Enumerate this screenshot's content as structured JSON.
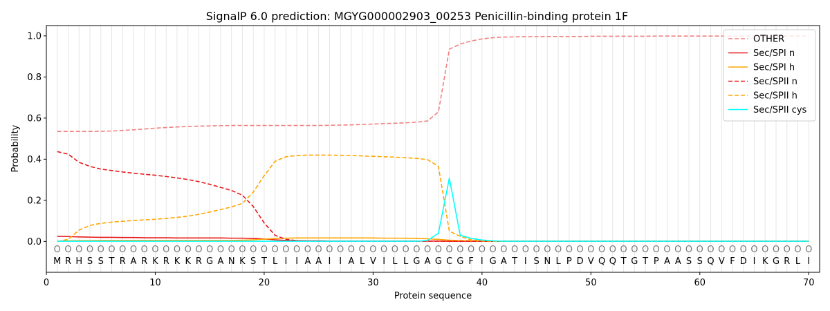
{
  "chart_data": {
    "type": "line",
    "title": "SignalP 6.0 prediction: MGYG000002903_00253 Penicillin-binding protein 1F",
    "xlabel": "Protein sequence",
    "ylabel": "Probability",
    "xlim": [
      0,
      71
    ],
    "ylim": [
      -0.15,
      1.05
    ],
    "xticks": [
      0,
      10,
      20,
      30,
      40,
      50,
      60,
      70
    ],
    "yticks": [
      0.0,
      0.2,
      0.4,
      0.6,
      0.8,
      1.0
    ],
    "ytick_labels": [
      "0.0",
      "0.2",
      "0.4",
      "0.6",
      "0.8",
      "1.0"
    ],
    "grid": "vertical lines at each residue",
    "legend_position": "top-right",
    "residues": [
      "M",
      "R",
      "H",
      "S",
      "S",
      "T",
      "R",
      "A",
      "R",
      "K",
      "R",
      "K",
      "K",
      "R",
      "G",
      "A",
      "N",
      "K",
      "S",
      "T",
      "L",
      "I",
      "I",
      "A",
      "A",
      "I",
      "I",
      "A",
      "L",
      "V",
      "I",
      "L",
      "L",
      "G",
      "A",
      "G",
      "C",
      "G",
      "F",
      "I",
      "G",
      "A",
      "T",
      "I",
      "S",
      "N",
      "L",
      "P",
      "D",
      "V",
      "Q",
      "Q",
      "T",
      "G",
      "T",
      "P",
      "A",
      "A",
      "S",
      "S",
      "Q",
      "V",
      "F",
      "D",
      "I",
      "K",
      "G",
      "R",
      "L",
      "I"
    ],
    "region_marker": "O",
    "series": [
      {
        "name": "OTHER",
        "color": "#f08080",
        "dash": "dashed",
        "values": [
          0.535,
          0.535,
          0.535,
          0.535,
          0.536,
          0.537,
          0.54,
          0.543,
          0.547,
          0.551,
          0.554,
          0.557,
          0.559,
          0.561,
          0.562,
          0.563,
          0.564,
          0.564,
          0.564,
          0.564,
          0.564,
          0.564,
          0.564,
          0.564,
          0.564,
          0.565,
          0.566,
          0.567,
          0.569,
          0.571,
          0.573,
          0.575,
          0.577,
          0.58,
          0.586,
          0.63,
          0.935,
          0.96,
          0.975,
          0.985,
          0.991,
          0.994,
          0.995,
          0.996,
          0.996,
          0.997,
          0.997,
          0.997,
          0.997,
          0.998,
          0.998,
          0.998,
          0.998,
          0.998,
          0.998,
          0.999,
          0.999,
          0.999,
          0.999,
          0.999,
          0.999,
          0.999,
          0.999,
          0.999,
          0.999,
          0.999,
          0.999,
          0.999,
          0.999,
          0.999
        ]
      },
      {
        "name": "Sec/SPI n",
        "color": "#e8191b",
        "dash": "solid",
        "values": [
          0.025,
          0.024,
          0.022,
          0.021,
          0.02,
          0.02,
          0.019,
          0.019,
          0.018,
          0.018,
          0.018,
          0.017,
          0.017,
          0.017,
          0.017,
          0.017,
          0.016,
          0.016,
          0.015,
          0.012,
          0.008,
          0.005,
          0.004,
          0.003,
          0.003,
          0.002,
          0.002,
          0.002,
          0.002,
          0.002,
          0.002,
          0.002,
          0.002,
          0.002,
          0.002,
          0.002,
          0.001,
          0.001,
          0.001,
          0.001,
          0.001,
          0.001,
          0.001,
          0.001,
          0.001,
          0.001,
          0.001,
          0.001,
          0.001,
          0.001,
          0.001,
          0.001,
          0.001,
          0.001,
          0.001,
          0.001,
          0.001,
          0.001,
          0.001,
          0.001,
          0.001,
          0.001,
          0.001,
          0.001,
          0.001,
          0.001,
          0.001,
          0.001,
          0.001,
          0.001
        ]
      },
      {
        "name": "Sec/SPI h",
        "color": "#ffa500",
        "dash": "solid",
        "values": [
          0.002,
          0.003,
          0.004,
          0.004,
          0.005,
          0.005,
          0.005,
          0.005,
          0.005,
          0.005,
          0.005,
          0.005,
          0.005,
          0.005,
          0.005,
          0.005,
          0.005,
          0.006,
          0.008,
          0.011,
          0.014,
          0.016,
          0.017,
          0.017,
          0.017,
          0.017,
          0.017,
          0.017,
          0.017,
          0.017,
          0.016,
          0.016,
          0.016,
          0.015,
          0.013,
          0.01,
          0.006,
          0.004,
          0.003,
          0.002,
          0.001,
          0.001,
          0.001,
          0.001,
          0.001,
          0.001,
          0.001,
          0.001,
          0.001,
          0.001,
          0.001,
          0.001,
          0.001,
          0.001,
          0.001,
          0.001,
          0.001,
          0.001,
          0.001,
          0.001,
          0.001,
          0.001,
          0.001,
          0.001,
          0.001,
          0.001,
          0.001,
          0.001,
          0.001,
          0.001
        ]
      },
      {
        "name": "Sec/SPII n",
        "color": "#e8191b",
        "dash": "dashed",
        "values": [
          0.437,
          0.425,
          0.385,
          0.365,
          0.352,
          0.345,
          0.338,
          0.332,
          0.327,
          0.322,
          0.316,
          0.309,
          0.301,
          0.291,
          0.278,
          0.263,
          0.248,
          0.225,
          0.17,
          0.09,
          0.03,
          0.01,
          0.004,
          0.002,
          0.001,
          0.001,
          0.001,
          0.001,
          0.001,
          0.001,
          0.001,
          0.001,
          0.001,
          0.001,
          0.001,
          0.001,
          0.001,
          0.001,
          0.001,
          0.001,
          0.001,
          0.001,
          0.001,
          0.001,
          0.001,
          0.001,
          0.001,
          0.001,
          0.001,
          0.001,
          0.001,
          0.001,
          0.001,
          0.001,
          0.001,
          0.001,
          0.001,
          0.001,
          0.001,
          0.001,
          0.001,
          0.001,
          0.001,
          0.001,
          0.001,
          0.001,
          0.001,
          0.001,
          0.001,
          0.001
        ]
      },
      {
        "name": "Sec/SPII h",
        "color": "#ffa500",
        "dash": "dashed",
        "values": [
          0.0,
          0.01,
          0.055,
          0.078,
          0.088,
          0.094,
          0.098,
          0.102,
          0.105,
          0.108,
          0.112,
          0.117,
          0.123,
          0.132,
          0.143,
          0.155,
          0.168,
          0.185,
          0.24,
          0.32,
          0.39,
          0.412,
          0.418,
          0.42,
          0.42,
          0.42,
          0.419,
          0.418,
          0.416,
          0.414,
          0.412,
          0.41,
          0.407,
          0.404,
          0.398,
          0.365,
          0.05,
          0.025,
          0.008,
          0.003,
          0.001,
          0.001,
          0.001,
          0.001,
          0.001,
          0.001,
          0.001,
          0.001,
          0.001,
          0.001,
          0.001,
          0.001,
          0.001,
          0.001,
          0.001,
          0.001,
          0.001,
          0.001,
          0.001,
          0.001,
          0.001,
          0.001,
          0.001,
          0.001,
          0.001,
          0.001,
          0.001,
          0.001,
          0.001,
          0.001
        ]
      },
      {
        "name": "Sec/SPII cys",
        "color": "#00ffff",
        "dash": "solid",
        "values": [
          0.001,
          0.001,
          0.001,
          0.001,
          0.001,
          0.001,
          0.001,
          0.001,
          0.001,
          0.001,
          0.001,
          0.001,
          0.001,
          0.001,
          0.001,
          0.001,
          0.001,
          0.001,
          0.001,
          0.001,
          0.001,
          0.001,
          0.001,
          0.001,
          0.001,
          0.001,
          0.001,
          0.001,
          0.001,
          0.001,
          0.001,
          0.001,
          0.001,
          0.001,
          0.005,
          0.04,
          0.308,
          0.03,
          0.015,
          0.007,
          0.003,
          0.001,
          0.001,
          0.001,
          0.001,
          0.001,
          0.001,
          0.001,
          0.001,
          0.001,
          0.001,
          0.001,
          0.001,
          0.001,
          0.001,
          0.001,
          0.001,
          0.001,
          0.001,
          0.001,
          0.001,
          0.001,
          0.001,
          0.001,
          0.001,
          0.001,
          0.001,
          0.001,
          0.001,
          0.001
        ]
      }
    ]
  }
}
